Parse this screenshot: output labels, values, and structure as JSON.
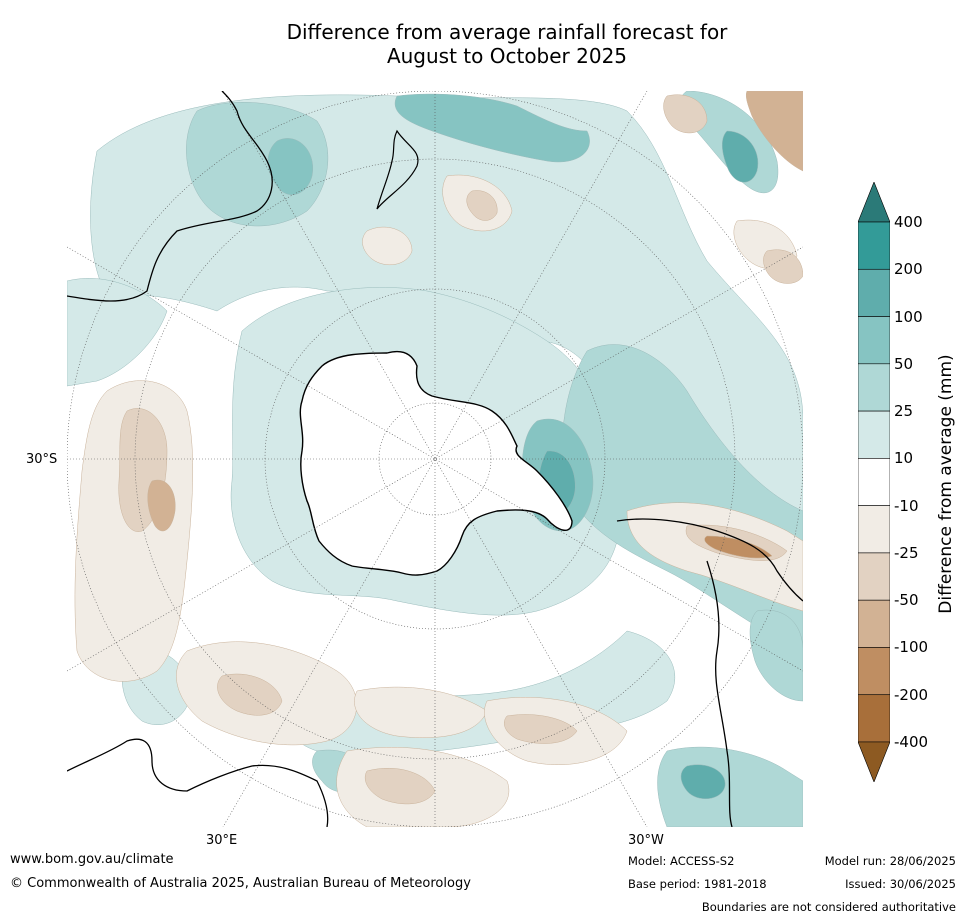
{
  "title": {
    "line1": "Difference from average rainfall forecast for",
    "line2": "August to October 2025"
  },
  "map": {
    "projection": "south-polar-stereographic",
    "lat_label": "30°S",
    "lon_labels": [
      "30°E",
      "30°W"
    ]
  },
  "colorbar": {
    "title": "Difference from average (mm)",
    "ticks": [
      "400",
      "200",
      "100",
      "50",
      "25",
      "10",
      "-10",
      "-25",
      "-50",
      "-100",
      "-200",
      "-400"
    ],
    "bands": [
      {
        "range": "> 400",
        "color": "#2b7a78"
      },
      {
        "range": "200 to 400",
        "color": "#339b98"
      },
      {
        "range": "100 to 200",
        "color": "#5fadac"
      },
      {
        "range": "50 to 100",
        "color": "#86c4c2"
      },
      {
        "range": "25 to 50",
        "color": "#afd8d6"
      },
      {
        "range": "10 to 25",
        "color": "#d4e9e8"
      },
      {
        "range": "-10 to 10",
        "color": "#ffffff"
      },
      {
        "range": "-25 to -10",
        "color": "#f1ece5"
      },
      {
        "range": "-50 to -25",
        "color": "#e2d2c2"
      },
      {
        "range": "-100 to -50",
        "color": "#d2b294"
      },
      {
        "range": "-200 to -100",
        "color": "#bf8e62"
      },
      {
        "range": "-400 to -200",
        "color": "#a86f3a"
      },
      {
        "range": "< -400",
        "color": "#8d5a22"
      }
    ]
  },
  "footer": {
    "website": "www.bom.gov.au/climate",
    "copyright": "© Commonwealth of Australia 2025, Australian Bureau of Meteorology",
    "model": "Model: ACCESS-S2",
    "base_period": "Base period: 1981-2018",
    "model_run": "Model run: 28/06/2025",
    "issued": "Issued: 30/06/2025",
    "disclaimer": "Boundaries are not considered authoritative"
  }
}
